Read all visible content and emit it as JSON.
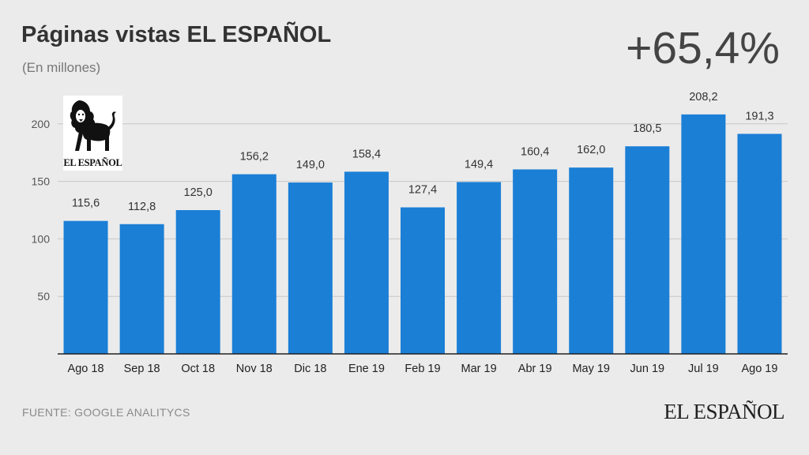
{
  "header": {
    "title": "Páginas vistas EL ESPAÑOL",
    "subtitle": "(En millones)",
    "headline_value": "+65,4%"
  },
  "footer": {
    "source": "FUENTE: GOOGLE ANALITYCS",
    "brand": "EL ESPAÑOL"
  },
  "logo": {
    "text": "EL ESPAÑOL",
    "icon": "lion-icon"
  },
  "colors": {
    "bar": "#1b7fd6",
    "grid": "#c8c8c8",
    "axis": "#222222",
    "background": "#ebebeb"
  },
  "chart_data": {
    "type": "bar",
    "title": "Páginas vistas EL ESPAÑOL",
    "subtitle": "(En millones)",
    "xlabel": "",
    "ylabel": "",
    "ylim": [
      0,
      220
    ],
    "yticks": [
      50,
      100,
      150,
      200
    ],
    "grid": true,
    "categories": [
      "Ago 18",
      "Sep 18",
      "Oct 18",
      "Nov 18",
      "Dic 18",
      "Ene 19",
      "Feb 19",
      "Mar 19",
      "Abr 19",
      "May 19",
      "Jun 19",
      "Jul 19",
      "Ago 19"
    ],
    "values": [
      115.6,
      112.8,
      125.0,
      156.2,
      149.0,
      158.4,
      127.4,
      149.4,
      160.4,
      162.0,
      180.5,
      208.2,
      191.3
    ],
    "value_labels": [
      "115,6",
      "112,8",
      "125,0",
      "156,2",
      "149,0",
      "158,4",
      "127,4",
      "149,4",
      "160,4",
      "162,0",
      "180,5",
      "208,2",
      "191,3"
    ]
  }
}
